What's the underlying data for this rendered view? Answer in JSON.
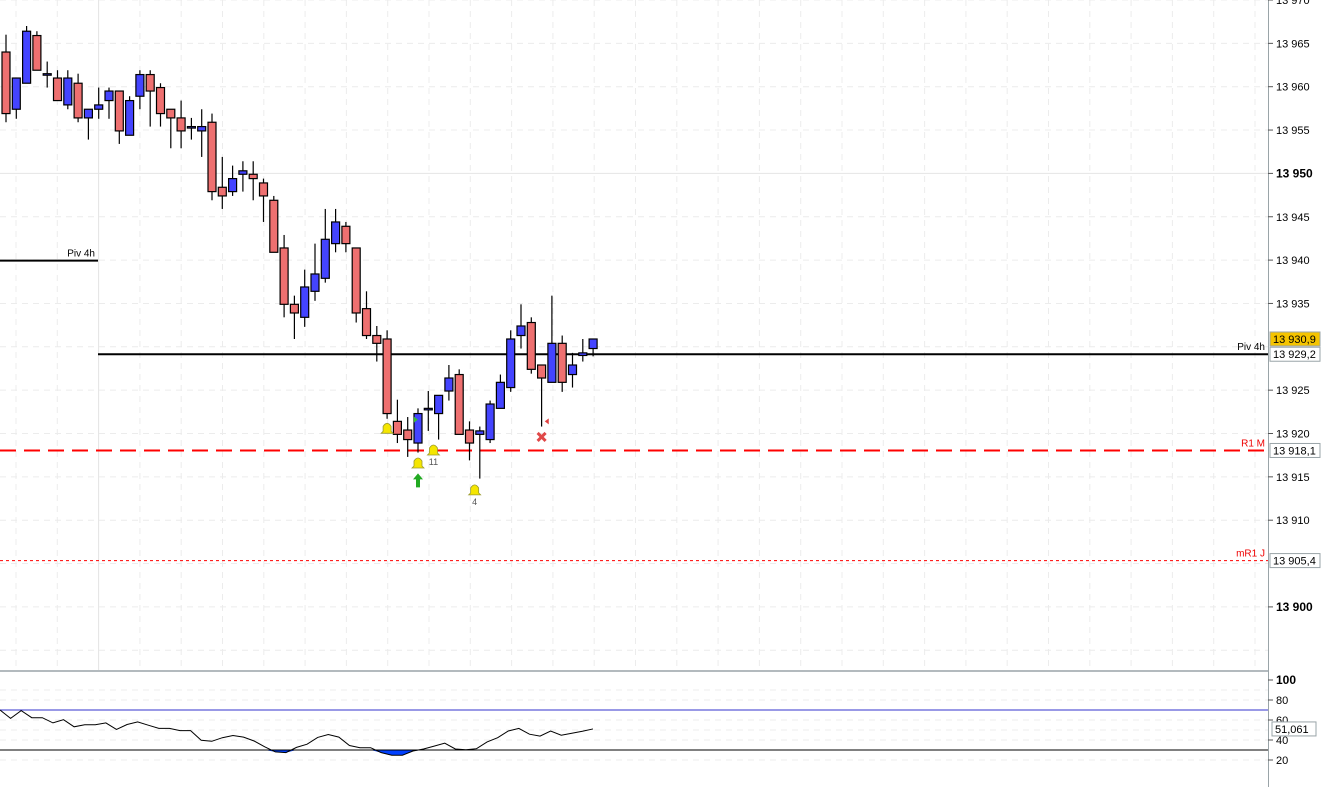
{
  "chart_data": {
    "type": "candlestick",
    "price_axis": {
      "ticks": [
        {
          "value": 13970,
          "label": "13 970",
          "bold": false
        },
        {
          "value": 13965,
          "label": "13 965",
          "bold": false
        },
        {
          "value": 13960,
          "label": "13 960",
          "bold": false
        },
        {
          "value": 13955,
          "label": "13 955",
          "bold": false
        },
        {
          "value": 13950,
          "label": "13 950",
          "bold": true
        },
        {
          "value": 13945,
          "label": "13 945",
          "bold": false
        },
        {
          "value": 13940,
          "label": "13 940",
          "bold": false
        },
        {
          "value": 13935,
          "label": "13 935",
          "bold": false
        },
        {
          "value": 13925,
          "label": "13 925",
          "bold": false
        },
        {
          "value": 13920,
          "label": "13 920",
          "bold": false
        },
        {
          "value": 13915,
          "label": "13 915",
          "bold": false
        },
        {
          "value": 13910,
          "label": "13 910",
          "bold": false
        },
        {
          "value": 13900,
          "label": "13 900",
          "bold": true
        }
      ],
      "range": [
        13894,
        13970
      ]
    },
    "colors": {
      "bullish": "#4444ff",
      "bearish": "#ee7070",
      "level_red": "#ff0000",
      "last_price_bg": "#f5c400",
      "oscillator_fill": "#0040ff"
    },
    "last_price": {
      "value": 13930.9,
      "label": "13 930,9"
    },
    "candles": [
      [
        13964.0,
        13966.0,
        13955.9,
        13956.9
      ],
      [
        13957.4,
        13961.0,
        13956.3,
        13961.0
      ],
      [
        13960.4,
        13967.0,
        13960.4,
        13966.4
      ],
      [
        13965.9,
        13966.4,
        13961.9,
        13961.9
      ],
      [
        13961.5,
        13962.9,
        13959.9,
        13961.5
      ],
      [
        13961.0,
        13961.9,
        13958.4,
        13958.4
      ],
      [
        13957.9,
        13961.9,
        13957.4,
        13961.0
      ],
      [
        13960.4,
        13961.5,
        13955.9,
        13956.4
      ],
      [
        13956.4,
        13957.4,
        13953.9,
        13957.4
      ],
      [
        13957.4,
        13959.9,
        13956.3,
        13957.9
      ],
      [
        13958.4,
        13959.9,
        13956.3,
        13959.5
      ],
      [
        13959.5,
        13959.5,
        13953.4,
        13954.9
      ],
      [
        13954.4,
        13958.9,
        13954.4,
        13958.4
      ],
      [
        13958.9,
        13961.9,
        13957.4,
        13961.4
      ],
      [
        13961.4,
        13961.9,
        13955.4,
        13959.5
      ],
      [
        13959.9,
        13960.4,
        13955.4,
        13956.9
      ],
      [
        13957.4,
        13957.4,
        13952.9,
        13956.4
      ],
      [
        13956.4,
        13958.4,
        13952.9,
        13954.9
      ],
      [
        13955.4,
        13956.4,
        13953.9,
        13955.4
      ],
      [
        13954.9,
        13957.4,
        13951.9,
        13955.4
      ],
      [
        13955.9,
        13956.9,
        13946.9,
        13947.9
      ],
      [
        13948.4,
        13951.9,
        13945.9,
        13947.4
      ],
      [
        13947.9,
        13950.9,
        13947.4,
        13949.4
      ],
      [
        13949.9,
        13951.4,
        13947.9,
        13950.3
      ],
      [
        13949.9,
        13951.4,
        13946.9,
        13949.4
      ],
      [
        13948.9,
        13949.4,
        13944.4,
        13947.4
      ],
      [
        13946.9,
        13947.4,
        13940.9,
        13940.9
      ],
      [
        13941.4,
        13942.9,
        13933.4,
        13934.9
      ],
      [
        13934.9,
        13935.9,
        13930.9,
        13933.9
      ],
      [
        13933.4,
        13938.9,
        13932.3,
        13936.9
      ],
      [
        13936.4,
        13941.9,
        13935.3,
        13938.4
      ],
      [
        13937.9,
        13945.9,
        13937.4,
        13942.4
      ],
      [
        13941.9,
        13945.9,
        13940.9,
        13944.4
      ],
      [
        13943.9,
        13944.4,
        13940.9,
        13941.9
      ],
      [
        13941.4,
        13941.4,
        13932.8,
        13933.9
      ],
      [
        13934.4,
        13936.4,
        13930.9,
        13931.3
      ],
      [
        13931.3,
        13932.4,
        13928.3,
        13930.4
      ],
      [
        13930.9,
        13931.9,
        13921.7,
        13922.3
      ],
      [
        13921.4,
        13923.9,
        13918.9,
        13919.9
      ],
      [
        13920.4,
        13921.9,
        13917.3,
        13919.3
      ],
      [
        13918.9,
        13922.9,
        13917.8,
        13922.3
      ],
      [
        13922.9,
        13924.9,
        13920.3,
        13922.9
      ],
      [
        13922.3,
        13924.4,
        13919.3,
        13924.4
      ],
      [
        13924.9,
        13927.9,
        13923.8,
        13926.4
      ],
      [
        13926.8,
        13927.4,
        13919.9,
        13919.9
      ],
      [
        13920.4,
        13921.4,
        13916.9,
        13918.9
      ],
      [
        13919.9,
        13920.8,
        13914.8,
        13920.3
      ],
      [
        13919.3,
        13923.8,
        13918.9,
        13923.4
      ],
      [
        13922.9,
        13926.8,
        13922.9,
        13925.9
      ],
      [
        13925.3,
        13931.9,
        13924.8,
        13930.9
      ],
      [
        13931.3,
        13934.9,
        13929.8,
        13932.4
      ],
      [
        13932.8,
        13933.4,
        13926.9,
        13927.4
      ],
      [
        13927.9,
        13927.9,
        13920.8,
        13926.4
      ],
      [
        13925.9,
        13935.9,
        13925.9,
        13930.4
      ],
      [
        13930.4,
        13931.3,
        13924.8,
        13925.9
      ],
      [
        13926.8,
        13929.3,
        13925.3,
        13927.9
      ],
      [
        13929.0,
        13930.9,
        13928.3,
        13929.3
      ],
      [
        13929.8,
        13930.9,
        13928.9,
        13930.9
      ]
    ],
    "levels": [
      {
        "name": "Piv 4h",
        "value": 13940.0,
        "style": "solid",
        "color": "#000000",
        "partial": true,
        "label_box": ""
      },
      {
        "name": "Piv 4h",
        "value": 13929.2,
        "style": "solid",
        "color": "#000000",
        "partial": false,
        "label_box": "13 929,2"
      },
      {
        "name": "R1 M",
        "value": 13918.1,
        "style": "dashed",
        "color": "#ff0000",
        "partial": false,
        "label_box": "13 918,1"
      },
      {
        "name": "mR1 J",
        "value": 13905.4,
        "style": "dotted",
        "color": "#ff0000",
        "partial": false,
        "label_box": "13 905,4"
      }
    ],
    "markers": [
      {
        "type": "bell",
        "candle": 37,
        "price": 13920.6,
        "label": ""
      },
      {
        "type": "bell",
        "candle": 40,
        "price": 13916.6,
        "label": ""
      },
      {
        "type": "bell",
        "candle": 41.5,
        "price": 13918.1,
        "label": "11"
      },
      {
        "type": "bell",
        "candle": 45.5,
        "price": 13913.5,
        "label": "4"
      },
      {
        "type": "arrow-up",
        "candle": 40,
        "price": 13914.6,
        "label": ""
      },
      {
        "type": "flag-green",
        "candle": 39.6,
        "price": 13921.6,
        "label": ""
      },
      {
        "type": "cross-red",
        "candle": 52,
        "price": 13919.6,
        "label": ""
      },
      {
        "type": "flag-red",
        "candle": 52.5,
        "price": 13921.4,
        "label": ""
      }
    ],
    "oscillator": {
      "ticks": [
        {
          "value": 100,
          "label": "100",
          "bold": true
        },
        {
          "value": 80,
          "label": "80",
          "bold": false
        },
        {
          "value": 60,
          "label": "60",
          "bold": false
        },
        {
          "value": 40,
          "label": "40",
          "bold": false
        },
        {
          "value": 20,
          "label": "20",
          "bold": false
        }
      ],
      "upper": 70,
      "lower": 30,
      "last_value": "51,061",
      "values": [
        70.0,
        61.6,
        69.4,
        62.3,
        62.3,
        57.1,
        60.3,
        53.2,
        55.2,
        55.2,
        57.1,
        50.6,
        55.5,
        58.1,
        54.8,
        51.6,
        51.6,
        49.4,
        49.4,
        39.7,
        38.7,
        42.3,
        44.5,
        42.9,
        39.0,
        33.2,
        28.1,
        27.4,
        32.6,
        35.8,
        42.6,
        45.5,
        42.9,
        34.5,
        32.3,
        32.3,
        27.4,
        24.8,
        24.8,
        29.0,
        31.0,
        33.9,
        36.8,
        31.0,
        30.3,
        31.3,
        38.1,
        42.3,
        49.0,
        51.6,
        45.8,
        43.9,
        49.0,
        44.8,
        46.8,
        48.7,
        51.06
      ]
    }
  }
}
